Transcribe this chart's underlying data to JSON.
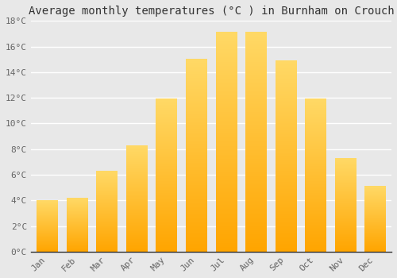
{
  "title": "Average monthly temperatures (°C ) in Burnham on Crouch",
  "months": [
    "Jan",
    "Feb",
    "Mar",
    "Apr",
    "May",
    "Jun",
    "Jul",
    "Aug",
    "Sep",
    "Oct",
    "Nov",
    "Dec"
  ],
  "temperatures": [
    4.0,
    4.2,
    6.3,
    8.3,
    11.9,
    15.0,
    17.1,
    17.1,
    14.9,
    11.9,
    7.3,
    5.1
  ],
  "bar_color_top": "#FFA500",
  "bar_color_bottom": "#FFD966",
  "ylim": [
    0,
    18
  ],
  "yticks": [
    0,
    2,
    4,
    6,
    8,
    10,
    12,
    14,
    16,
    18
  ],
  "ytick_labels": [
    "0°C",
    "2°C",
    "4°C",
    "6°C",
    "8°C",
    "10°C",
    "12°C",
    "14°C",
    "16°C",
    "18°C"
  ],
  "background_color": "#e8e8e8",
  "grid_color": "#ffffff",
  "title_fontsize": 10,
  "tick_fontsize": 8,
  "font_family": "monospace"
}
